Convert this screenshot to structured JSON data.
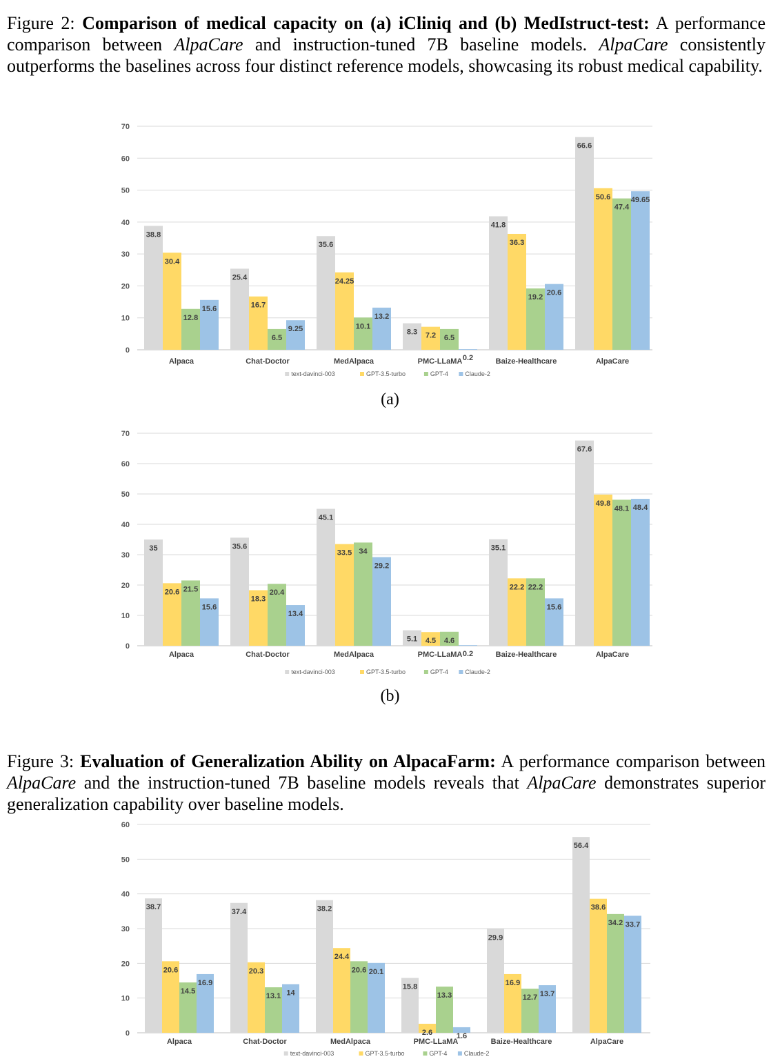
{
  "figure2": {
    "label": "Figure 2:",
    "title": "Comparison of medical capacity on (a) iCliniq and (b) MedIstruct-test:",
    "text_1": "A performance comparison between",
    "model_1": "AlpaCare",
    "text_2": "and instruction-tuned 7B baseline models.",
    "model_2": "AlpaCare",
    "text_3": "consistently outperforms the baselines across four distinct reference models, showcasing its robust medical capability."
  },
  "sub_a": "(a)",
  "sub_b": "(b)",
  "figure3": {
    "label": "Figure 3:",
    "title": "Evaluation of Generalization Ability on AlpacaFarm:",
    "text_1": "A performance comparison between",
    "model_1": "AlpaCare",
    "text_2": "and the instruction-tuned 7B baseline models reveals that",
    "model_2": "AlpaCare",
    "text_3": "demonstrates superior generalization capability over baseline models."
  },
  "colors": {
    "text-davinci-003": "#d9d9d9",
    "GPT-3.5-turbo": "#ffd966",
    "GPT-4": "#a9d18e",
    "Claude-2": "#9dc3e6",
    "gridline": "#d9d9d9"
  },
  "chart_data": [
    {
      "type": "bar",
      "title": "",
      "panel": "(a) iCliniq",
      "categories": [
        "Alpaca",
        "Chat-Doctor",
        "MedAlpaca",
        "PMC-LLaMA",
        "Baize-Healthcare",
        "AlpaCare"
      ],
      "series": [
        {
          "name": "text-davinci-003",
          "values": [
            38.8,
            25.4,
            35.6,
            8.3,
            41.8,
            66.6
          ],
          "labels": [
            "38.8",
            "25.4",
            "35.6",
            "8.3",
            "41.8",
            "66.6"
          ]
        },
        {
          "name": "GPT-3.5-turbo",
          "values": [
            30.4,
            16.7,
            24.25,
            7.2,
            36.3,
            50.6
          ],
          "labels": [
            "30.4",
            "16.7",
            "24.25",
            "7.2",
            "36.3",
            "50.6"
          ]
        },
        {
          "name": "GPT-4",
          "values": [
            12.8,
            6.5,
            10.1,
            6.5,
            19.2,
            47.4
          ],
          "labels": [
            "12.8",
            "6.5",
            "10.1",
            "6.5",
            "19.2",
            "47.4"
          ]
        },
        {
          "name": "Claude-2",
          "values": [
            15.6,
            9.25,
            13.2,
            0.2,
            20.6,
            49.65
          ],
          "labels": [
            "15.6",
            "9.25",
            "13.2",
            "0.2",
            "20.6",
            "49.65"
          ]
        }
      ],
      "yticks": [
        "0",
        "10",
        "20",
        "30",
        "40",
        "50",
        "60",
        "70"
      ],
      "ylim": [
        0,
        70
      ],
      "grid": true,
      "legend": "bottom-center",
      "xlabel": "",
      "ylabel": ""
    },
    {
      "type": "bar",
      "title": "",
      "panel": "(b) MedIstruct-test",
      "categories": [
        "Alpaca",
        "Chat-Doctor",
        "MedAlpaca",
        "PMC-LLaMA",
        "Baize-Healthcare",
        "AlpaCare"
      ],
      "series": [
        {
          "name": "text-davinci-003",
          "values": [
            35,
            35.6,
            45.1,
            5.1,
            35.1,
            67.6
          ],
          "labels": [
            "35",
            "35.6",
            "45.1",
            "5.1",
            "35.1",
            "67.6"
          ]
        },
        {
          "name": "GPT-3.5-turbo",
          "values": [
            20.6,
            18.3,
            33.5,
            4.5,
            22.2,
            49.8
          ],
          "labels": [
            "20.6",
            "18.3",
            "33.5",
            "4.5",
            "22.2",
            "49.8"
          ]
        },
        {
          "name": "GPT-4",
          "values": [
            21.5,
            20.4,
            34,
            4.6,
            22.2,
            48.1
          ],
          "labels": [
            "21.5",
            "20.4",
            "34",
            "4.6",
            "22.2",
            "48.1"
          ]
        },
        {
          "name": "Claude-2",
          "values": [
            15.6,
            13.4,
            29.2,
            0.2,
            15.6,
            48.4
          ],
          "labels": [
            "15.6",
            "13.4",
            "29.2",
            "0.2",
            "15.6",
            "48.4"
          ]
        }
      ],
      "yticks": [
        "0",
        "10",
        "20",
        "30",
        "40",
        "50",
        "60",
        "70"
      ],
      "ylim": [
        0,
        70
      ],
      "grid": true,
      "legend": "bottom-center",
      "xlabel": "",
      "ylabel": ""
    },
    {
      "type": "bar",
      "title": "",
      "panel": "AlpacaFarm",
      "categories": [
        "Alpaca",
        "Chat-Doctor",
        "MedAlpaca",
        "PMC-LLaMA",
        "Baize-Healthcare",
        "AlpaCare"
      ],
      "series": [
        {
          "name": "text-davinci-003",
          "values": [
            38.7,
            37.4,
            38.2,
            15.8,
            29.9,
            56.4
          ],
          "labels": [
            "38.7",
            "37.4",
            "38.2",
            "15.8",
            "29.9",
            "56.4"
          ]
        },
        {
          "name": "GPT-3.5-turbo",
          "values": [
            20.6,
            20.3,
            24.4,
            2.6,
            16.9,
            38.6
          ],
          "labels": [
            "20.6",
            "20.3",
            "24.4",
            "2.6",
            "16.9",
            "38.6"
          ]
        },
        {
          "name": "GPT-4",
          "values": [
            14.5,
            13.1,
            20.6,
            13.3,
            12.7,
            34.2
          ],
          "labels": [
            "14.5",
            "13.1",
            "20.6",
            "13.3",
            "12.7",
            "34.2"
          ]
        },
        {
          "name": "Claude-2",
          "values": [
            16.9,
            14,
            20.1,
            1.6,
            13.7,
            33.7
          ],
          "labels": [
            "16.9",
            "14",
            "20.1",
            "1.6",
            "13.7",
            "33.7"
          ]
        }
      ],
      "yticks": [
        "0",
        "10",
        "20",
        "30",
        "40",
        "50",
        "60"
      ],
      "ylim": [
        0,
        60
      ],
      "grid": true,
      "legend": "bottom-center",
      "xlabel": "",
      "ylabel": ""
    }
  ]
}
